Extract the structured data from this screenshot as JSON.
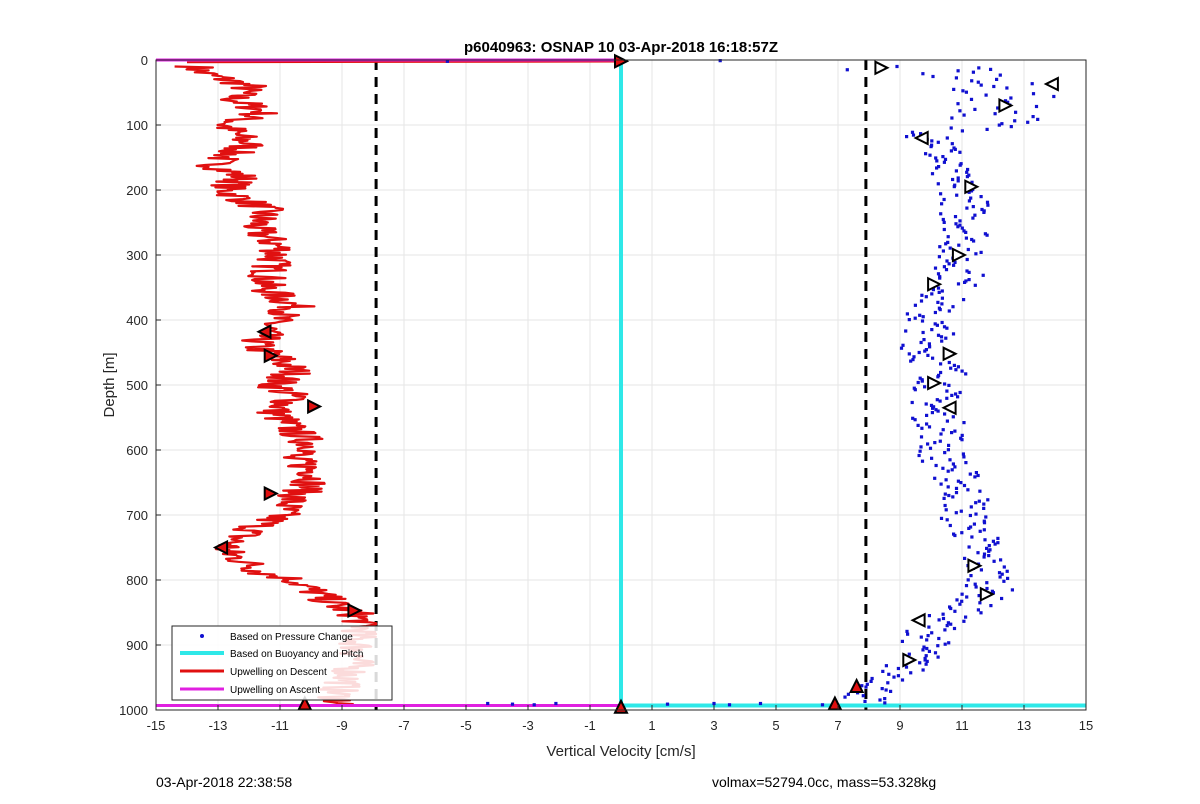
{
  "chart_data": {
    "type": "scatter",
    "title": "p6040963: OSNAP 10 03-Apr-2018 16:18:57Z",
    "xlabel": "Vertical Velocity [cm/s]",
    "ylabel": "Depth [m]",
    "xlim": [
      -15,
      15
    ],
    "ylim": [
      1000,
      0
    ],
    "y_reversed": true,
    "grid": true,
    "x_ticks": [
      -15,
      -13,
      -11,
      -9,
      -7,
      -5,
      -3,
      -1,
      1,
      3,
      5,
      7,
      9,
      11,
      13,
      15
    ],
    "y_ticks": [
      0,
      100,
      200,
      300,
      400,
      500,
      600,
      700,
      800,
      900,
      1000
    ],
    "legend_position": "bottom-left",
    "legend": [
      "Based on Pressure Change",
      "Based on Buoyancy and Pitch",
      "Upwelling on Descent",
      "Upwelling on Ascent"
    ],
    "colors": {
      "pressure": "#1010d0",
      "buoyancy": "#2ee8e8",
      "descent": "#e01010",
      "ascent": "#e020e0",
      "threshold": "#000000",
      "grid": "#e6e6e6"
    },
    "thresholds": [
      -7.9,
      7.9
    ],
    "series": [
      {
        "name": "Upwelling on Descent",
        "x_center": [
          -14.0,
          -13.5,
          -12.0,
          -12.5,
          -11.5,
          -12.8,
          -12.0,
          -13.2,
          -12.2,
          -12.8,
          -11.5,
          -11.8,
          -11.0,
          -11.3,
          -11.5,
          -10.5,
          -11.2,
          -11.5,
          -11.8,
          -11.0,
          -10.5,
          -11.2,
          -10.5,
          -11.2,
          -10.8,
          -10.3,
          -9.8,
          -10.8,
          -10.3,
          -9.8,
          -10.2,
          -10.7,
          -11.0,
          -11.8,
          -12.5,
          -12.8,
          -12.2,
          -11.5,
          -10.5,
          -10.2,
          -9.8,
          -9.5,
          -9.2,
          -8.6,
          -8.3,
          -8.5,
          -8.5,
          -8.8,
          -9.2,
          -9.0
        ],
        "y": [
          0,
          20,
          40,
          60,
          80,
          100,
          130,
          160,
          180,
          200,
          230,
          260,
          290,
          320,
          350,
          380,
          400,
          420,
          440,
          460,
          480,
          500,
          520,
          540,
          560,
          580,
          600,
          610,
          620,
          640,
          660,
          680,
          700,
          720,
          740,
          755,
          770,
          790,
          800,
          810,
          820,
          830,
          840,
          850,
          870,
          890,
          920,
          950,
          975,
          990
        ]
      },
      {
        "name": "Based on Pressure Change",
        "x_center": [
          10.0,
          11.5,
          12.5,
          12.2,
          10.5,
          10.3,
          10.5,
          11.2,
          11.0,
          11.3,
          10.8,
          11.0,
          10.5,
          9.8,
          10.0,
          9.8,
          10.5,
          10.2,
          10.0,
          10.5,
          10.3,
          10.5,
          10.8,
          11.0,
          11.2,
          11.0,
          11.3,
          11.5,
          11.5,
          11.8,
          12.0,
          11.8,
          11.2,
          10.5,
          10.0,
          9.8,
          9.5,
          9.0,
          8.8,
          8.2,
          7.8
        ],
        "y": [
          10,
          30,
          60,
          90,
          120,
          150,
          180,
          210,
          240,
          270,
          300,
          330,
          360,
          390,
          420,
          450,
          480,
          510,
          540,
          570,
          600,
          620,
          640,
          660,
          680,
          700,
          720,
          740,
          760,
          780,
          800,
          820,
          840,
          860,
          880,
          900,
          920,
          940,
          955,
          970,
          985
        ]
      },
      {
        "name": "Based on Buoyancy and Pitch",
        "x": [
          0,
          0,
          15
        ],
        "y": [
          0,
          993,
          993
        ]
      },
      {
        "name": "Upwelling on Ascent",
        "x": [
          -15,
          0
        ],
        "y": [
          0,
          0
        ]
      }
    ],
    "descent_markers": [
      {
        "x": 0.0,
        "y": 2,
        "dir": "right"
      },
      {
        "x": -11.5,
        "y": 418,
        "dir": "left"
      },
      {
        "x": -11.3,
        "y": 455,
        "dir": "right"
      },
      {
        "x": -9.9,
        "y": 533,
        "dir": "right"
      },
      {
        "x": -11.3,
        "y": 667,
        "dir": "right"
      },
      {
        "x": -12.9,
        "y": 750,
        "dir": "left"
      },
      {
        "x": -8.6,
        "y": 847,
        "dir": "right"
      },
      {
        "x": -10.2,
        "y": 990,
        "dir": "up"
      }
    ],
    "pressure_markers": [
      {
        "x": 8.4,
        "y": 12,
        "dir": "right"
      },
      {
        "x": 13.9,
        "y": 37,
        "dir": "left"
      },
      {
        "x": 12.4,
        "y": 70,
        "dir": "right"
      },
      {
        "x": 9.7,
        "y": 120,
        "dir": "left"
      },
      {
        "x": 11.3,
        "y": 195,
        "dir": "right"
      },
      {
        "x": 10.9,
        "y": 300,
        "dir": "right"
      },
      {
        "x": 10.1,
        "y": 345,
        "dir": "right"
      },
      {
        "x": 10.6,
        "y": 452,
        "dir": "right"
      },
      {
        "x": 10.1,
        "y": 497,
        "dir": "right"
      },
      {
        "x": 10.6,
        "y": 535,
        "dir": "left"
      },
      {
        "x": 11.4,
        "y": 778,
        "dir": "right"
      },
      {
        "x": 11.8,
        "y": 822,
        "dir": "right"
      },
      {
        "x": 9.6,
        "y": 862,
        "dir": "left"
      },
      {
        "x": 9.3,
        "y": 923,
        "dir": "right"
      },
      {
        "x": 7.6,
        "y": 963,
        "dir": "up"
      },
      {
        "x": 6.9,
        "y": 990,
        "dir": "up"
      },
      {
        "x": 0.0,
        "y": 995,
        "dir": "up"
      }
    ]
  },
  "footer": {
    "timestamp": "03-Apr-2018 22:38:58",
    "summary": "volmax=52794.0cc, mass=53.328kg"
  }
}
